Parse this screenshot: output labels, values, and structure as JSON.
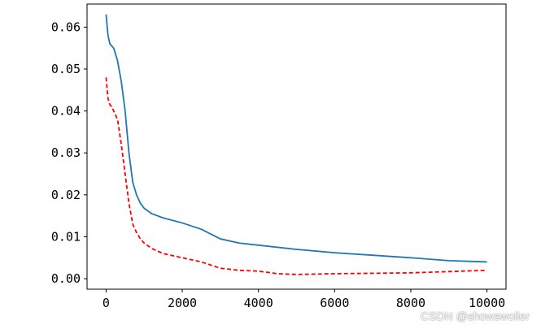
{
  "chart_data": {
    "type": "line",
    "title": "",
    "xlabel": "",
    "ylabel": "",
    "xlim": [
      -500,
      10500
    ],
    "ylim": [
      -0.0025,
      0.0655
    ],
    "xticks": [
      0,
      2000,
      4000,
      6000,
      8000,
      10000
    ],
    "xtick_labels": [
      "0",
      "2000",
      "4000",
      "6000",
      "8000",
      "10000"
    ],
    "yticks": [
      0.0,
      0.01,
      0.02,
      0.03,
      0.04,
      0.05,
      0.06
    ],
    "ytick_labels": [
      "0.00",
      "0.01",
      "0.02",
      "0.03",
      "0.04",
      "0.05",
      "0.06"
    ],
    "grid": false,
    "legend": "none",
    "series": [
      {
        "color": "#1f77b4",
        "style": "solid",
        "x": [
          0,
          50,
          100,
          150,
          200,
          300,
          400,
          500,
          600,
          700,
          800,
          900,
          1000,
          1200,
          1500,
          2000,
          2500,
          3000,
          3500,
          4000,
          5000,
          6000,
          7000,
          8000,
          9000,
          10000
        ],
        "y": [
          0.063,
          0.058,
          0.056,
          0.0555,
          0.055,
          0.052,
          0.047,
          0.04,
          0.03,
          0.023,
          0.02,
          0.018,
          0.0168,
          0.0155,
          0.0145,
          0.0133,
          0.0118,
          0.0095,
          0.0085,
          0.008,
          0.007,
          0.0062,
          0.0056,
          0.005,
          0.0043,
          0.004
        ]
      },
      {
        "color": "#ff0000",
        "style": "dashed",
        "x": [
          0,
          50,
          100,
          150,
          200,
          300,
          400,
          500,
          600,
          700,
          800,
          900,
          1000,
          1200,
          1500,
          2000,
          2500,
          3000,
          3500,
          4000,
          4500,
          5000,
          6000,
          7000,
          8000,
          9000,
          10000
        ],
        "y": [
          0.048,
          0.043,
          0.0415,
          0.041,
          0.04,
          0.038,
          0.032,
          0.025,
          0.018,
          0.013,
          0.011,
          0.0095,
          0.0085,
          0.0072,
          0.006,
          0.005,
          0.004,
          0.0025,
          0.002,
          0.0018,
          0.0012,
          0.001,
          0.0012,
          0.0013,
          0.0014,
          0.0017,
          0.002
        ]
      }
    ]
  },
  "watermark": "CSDN @showswoller"
}
